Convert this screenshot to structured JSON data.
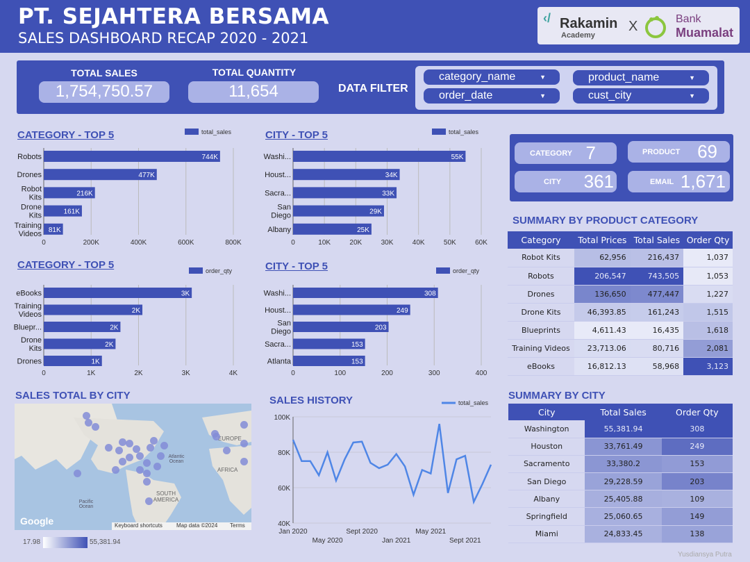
{
  "header": {
    "company": "PT. SEJAHTERA BERSAMA",
    "subtitle": "SALES DASHBOARD RECAP 2020 - 2021"
  },
  "logos": {
    "rakamin": "Rakamin",
    "rakamin_sub": "Academy",
    "x": "X",
    "bank_line1": "Bank",
    "bank_line2": "Muamalat"
  },
  "kpis": {
    "total_sales_label": "TOTAL SALES",
    "total_sales": "1,754,750.57",
    "total_qty_label": "TOTAL QUANTITY",
    "total_qty": "11,654"
  },
  "filter": {
    "label": "DATA FILTER",
    "items": [
      "category_name",
      "product_name",
      "order_date",
      "cust_city"
    ]
  },
  "stats": {
    "category_label": "CATEGORY",
    "category": "7",
    "product_label": "PRODUCT",
    "product": "69",
    "city_label": "CITY",
    "city": "361",
    "email_label": "EMAIL",
    "email": "1,671"
  },
  "titles": {
    "cat_sales": "CATEGORY - TOP 5",
    "city_sales": "CITY - TOP 5",
    "cat_qty": "CATEGORY - TOP 5",
    "city_qty": "CITY - TOP 5",
    "prod_summary": "SUMMARY BY PRODUCT CATEGORY",
    "map": "SALES TOTAL BY CITY",
    "history": "SALES HISTORY",
    "city_summary": "SUMMARY BY CITY"
  },
  "chart_data": [
    {
      "id": "cat_sales",
      "type": "bar",
      "orientation": "horizontal",
      "legend": "total_sales",
      "categories": [
        "Robots",
        "Drones",
        "Robot Kits",
        "Drone Kits",
        "Training Videos"
      ],
      "values": [
        744000,
        477000,
        216000,
        161000,
        81000
      ],
      "labels": [
        "744K",
        "477K",
        "216K",
        "161K",
        "81K"
      ],
      "xlim": [
        0,
        800000
      ],
      "ticks": [
        "0",
        "200K",
        "400K",
        "600K",
        "800K"
      ]
    },
    {
      "id": "city_sales",
      "type": "bar",
      "orientation": "horizontal",
      "legend": "total_sales",
      "categories": [
        "Washi...",
        "Houst...",
        "Sacra...",
        "San Diego",
        "Albany"
      ],
      "values": [
        55000,
        34000,
        33000,
        29000,
        25000
      ],
      "labels": [
        "55K",
        "34K",
        "33K",
        "29K",
        "25K"
      ],
      "xlim": [
        0,
        60000
      ],
      "ticks": [
        "0",
        "10K",
        "20K",
        "30K",
        "40K",
        "50K",
        "60K"
      ]
    },
    {
      "id": "cat_qty",
      "type": "bar",
      "orientation": "horizontal",
      "legend": "order_qty",
      "categories": [
        "eBooks",
        "Training Videos",
        "Bluepr...",
        "Drone Kits",
        "Drones"
      ],
      "values": [
        3123,
        2081,
        1618,
        1515,
        1227
      ],
      "labels": [
        "3K",
        "2K",
        "2K",
        "2K",
        "1K"
      ],
      "xlim": [
        0,
        4000
      ],
      "ticks": [
        "0",
        "1K",
        "2K",
        "3K",
        "4K"
      ]
    },
    {
      "id": "city_qty",
      "type": "bar",
      "orientation": "horizontal",
      "legend": "order_qty",
      "categories": [
        "Washi...",
        "Houst...",
        "San Diego",
        "Sacra...",
        "Atlanta"
      ],
      "values": [
        308,
        249,
        203,
        153,
        153
      ],
      "labels": [
        "308",
        "249",
        "203",
        "153",
        "153"
      ],
      "xlim": [
        0,
        400
      ],
      "ticks": [
        "0",
        "100",
        "200",
        "300",
        "400"
      ]
    },
    {
      "id": "history",
      "type": "line",
      "legend": "total_sales",
      "x": [
        "Jan 2020",
        "Feb 2020",
        "Mar 2020",
        "Apr 2020",
        "May 2020",
        "Jun 2020",
        "Jul 2020",
        "Aug 2020",
        "Sept 2020",
        "Oct 2020",
        "Nov 2020",
        "Dec 2020",
        "Jan 2021",
        "Feb 2021",
        "Mar 2021",
        "Apr 2021",
        "May 2021",
        "Jun 2021",
        "Jul 2021",
        "Aug 2021",
        "Sept 2021",
        "Oct 2021",
        "Nov 2021",
        "Dec 2021"
      ],
      "values": [
        87000,
        75000,
        75000,
        67000,
        80000,
        64000,
        76000,
        85500,
        86000,
        74000,
        71000,
        73000,
        79000,
        72000,
        56000,
        70000,
        68000,
        96000,
        57000,
        76000,
        78000,
        52000,
        62000,
        73000
      ],
      "ylim": [
        40000,
        100000
      ],
      "yticks": [
        "40K",
        "60K",
        "80K",
        "100K"
      ],
      "xticks_top": [
        "Jan 2020",
        "Sept 2020",
        "May 2021"
      ],
      "xticks_bottom": [
        "May 2020",
        "Jan 2021",
        "Sept 2021"
      ]
    }
  ],
  "prod_table": {
    "headers": [
      "Category",
      "Total Prices",
      "Total Sales",
      "Order Qty"
    ],
    "rows": [
      [
        "Robot Kits",
        "62,956",
        "216,437",
        "1,037"
      ],
      [
        "Robots",
        "206,547",
        "743,505",
        "1,053"
      ],
      [
        "Drones",
        "136,650",
        "477,447",
        "1,227"
      ],
      [
        "Drone Kits",
        "46,393.85",
        "161,243",
        "1,515"
      ],
      [
        "Blueprints",
        "4,611.43",
        "16,435",
        "1,618"
      ],
      [
        "Training Videos",
        "23,713.06",
        "80,716",
        "2,081"
      ],
      [
        "eBooks",
        "16,812.13",
        "58,968",
        "3,123"
      ]
    ]
  },
  "city_table": {
    "headers": [
      "City",
      "Total Sales",
      "Order Qty"
    ],
    "rows": [
      [
        "Washington",
        "55,381.94",
        "308"
      ],
      [
        "Houston",
        "33,761.49",
        "249"
      ],
      [
        "Sacramento",
        "33,380.2",
        "153"
      ],
      [
        "San Diego",
        "29,228.59",
        "203"
      ],
      [
        "Albany",
        "25,405.88",
        "109"
      ],
      [
        "Springfield",
        "25,060.65",
        "149"
      ],
      [
        "Miami",
        "24,833.45",
        "138"
      ]
    ]
  },
  "map": {
    "labels": [
      "EUROPE",
      "Atlantic Ocean",
      "AFRICA",
      "SOUTH AMERICA",
      "Pacific Ocean"
    ],
    "logo": "Google",
    "footer": [
      "Keyboard shortcuts",
      "Map data ©2024",
      "Terms"
    ],
    "legend_min": "17.98",
    "legend_max": "55,381.94"
  },
  "credit": "Yusdiansya Putra"
}
